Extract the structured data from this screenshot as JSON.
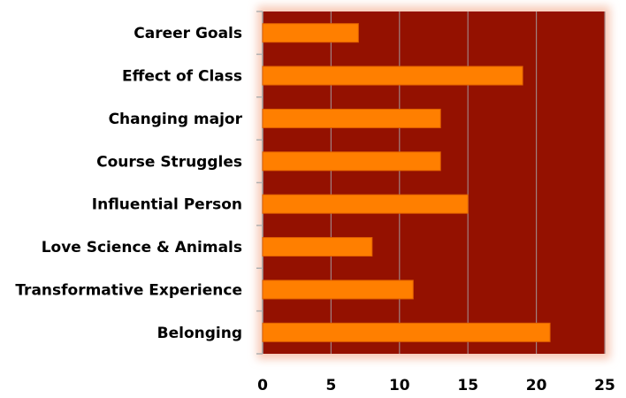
{
  "chart_data": {
    "type": "bar",
    "orientation": "horizontal",
    "title": "",
    "xlabel": "",
    "ylabel": "",
    "categories": [
      "Career Goals",
      "Effect of Class",
      "Changing major",
      "Course Struggles",
      "Influential Person",
      "Love Science & Animals",
      "Transformative Experience",
      "Belonging"
    ],
    "values": [
      7,
      19,
      13,
      13,
      15,
      8,
      11,
      21
    ],
    "xlim": [
      0,
      25
    ],
    "xticks": [
      "0",
      "5",
      "10",
      "15",
      "20",
      "25"
    ],
    "grid": "vertical",
    "legend": "none",
    "colors": {
      "bar": "#ff7f00",
      "bar_border": "#e06000",
      "plot_bg": "#941100",
      "grid": "#a08080",
      "glow": "#f7c9b6"
    }
  }
}
